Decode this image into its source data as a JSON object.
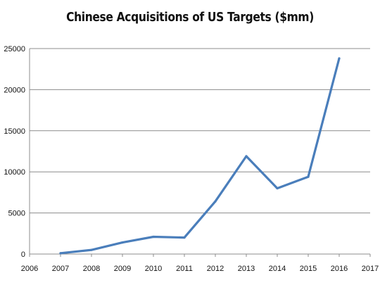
{
  "chart_data": {
    "type": "line",
    "title": "Chinese Acquisitions  of US Targets ($mm)",
    "xlabel": "",
    "ylabel": "",
    "xlim": [
      2006,
      2017
    ],
    "ylim": [
      0,
      25000
    ],
    "x_ticks": [
      "2006",
      "2007",
      "2008",
      "2009",
      "2010",
      "2011",
      "2012",
      "2013",
      "2014",
      "2015",
      "2016",
      "2017"
    ],
    "y_ticks": [
      "0",
      "5000",
      "10000",
      "15000",
      "20000",
      "25000"
    ],
    "grid": true,
    "legend": "none",
    "series": [
      {
        "color": "#4a7ebb",
        "x": [
          2007,
          2008,
          2009,
          2010,
          2011,
          2012,
          2013,
          2014,
          2015,
          2016
        ],
        "y": [
          100,
          500,
          1400,
          2100,
          2000,
          6400,
          11900,
          8000,
          9400,
          23800
        ]
      }
    ]
  }
}
